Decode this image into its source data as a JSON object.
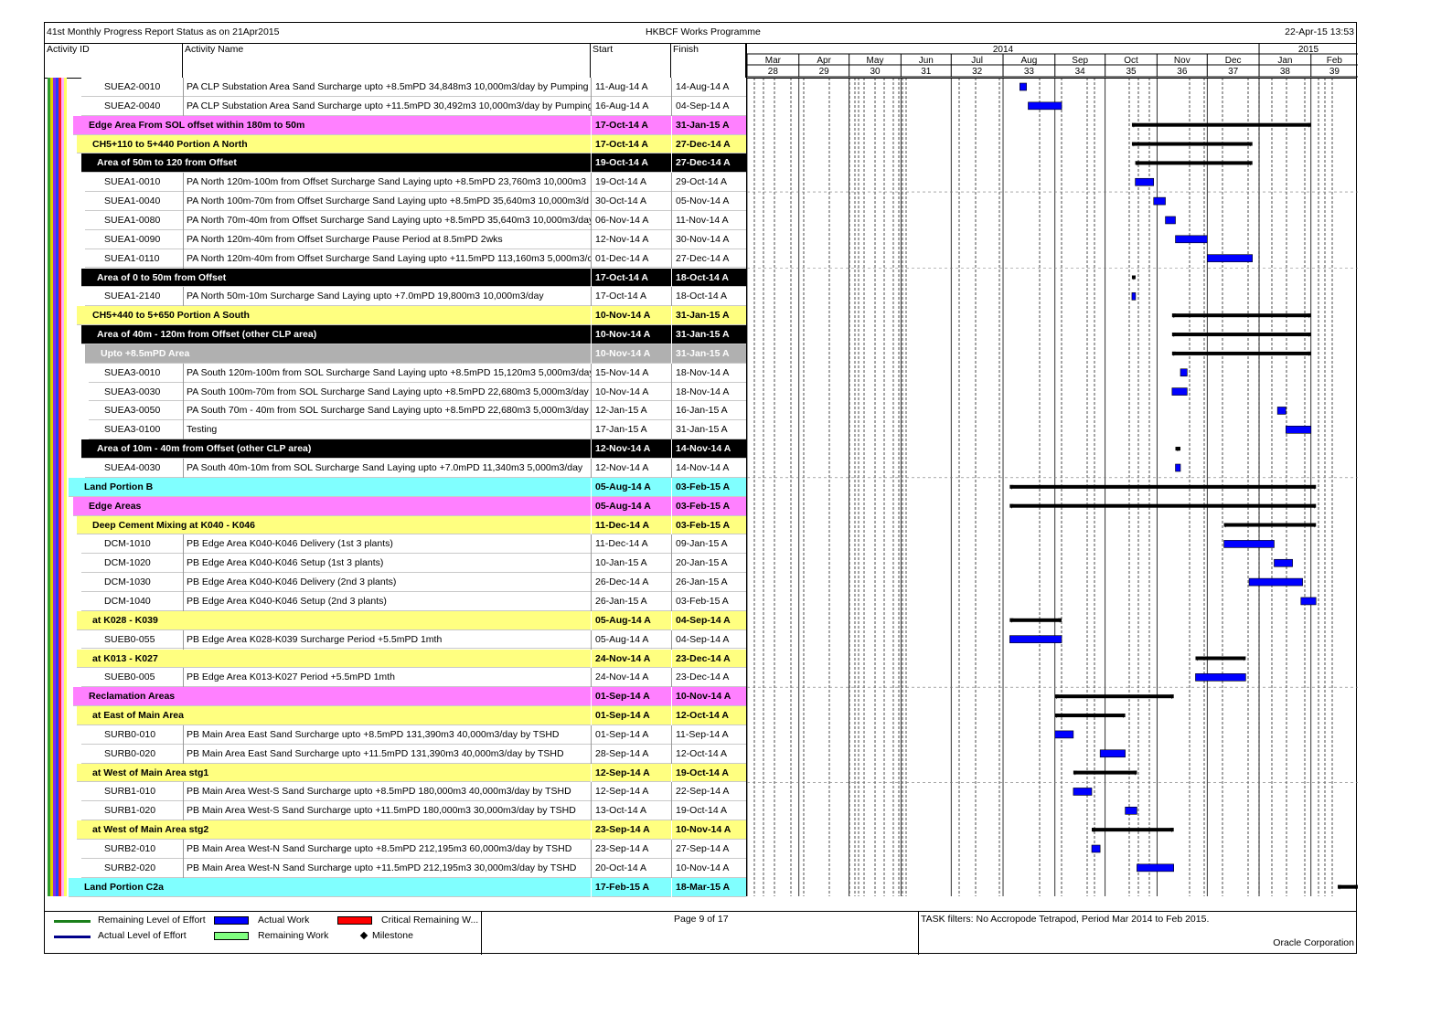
{
  "header": {
    "left": "41st Monthly Progress Report Status as on 21Apr2015",
    "center": "HKBCF Works Programme",
    "right": "22-Apr-15 13:53"
  },
  "columns": {
    "id": "Activity ID",
    "name": "Activity Name",
    "start": "Start",
    "finish": "Finish"
  },
  "timeline": {
    "years": [
      "2014",
      "2015"
    ],
    "months": [
      "Mar",
      "Apr",
      "May",
      "Jun",
      "Jul",
      "Aug",
      "Sep",
      "Oct",
      "Nov",
      "Dec",
      "Jan",
      "Feb"
    ],
    "periods": [
      "28",
      "29",
      "30",
      "31",
      "32",
      "33",
      "34",
      "35",
      "36",
      "37",
      "38",
      "39"
    ]
  },
  "colors": {
    "magenta_band": "#ff80ff",
    "yellow_band": "#ffff80",
    "black_band": "#000000",
    "grey_band": "#b0b0b0",
    "cyan_band": "#80ffff",
    "actual_work": "#0000ff",
    "summary_bar": "#000000"
  },
  "rows": [
    {
      "id": "SUEA2-0010",
      "name": "PA CLP Substation Area Sand Surcharge upto +8.5mPD 34,848m3 10,000m3/day by Pumping I",
      "start": "11-Aug-14 A",
      "finish": "14-Aug-14 A",
      "kind": "task",
      "indent": 2
    },
    {
      "id": "SUEA2-0040",
      "name": "PA CLP Substation Area Sand Surcharge upto +11.5mPD 30,492m3 10,000m3/day by Pumping",
      "start": "16-Aug-14 A",
      "finish": "04-Sep-14 A",
      "kind": "task",
      "indent": 2
    },
    {
      "id": "",
      "name": "Edge Area From SOL offset within 180m to 50m",
      "start": "17-Oct-14 A",
      "finish": "31-Jan-15 A",
      "kind": "magenta",
      "indent": 0
    },
    {
      "id": "",
      "name": "CH5+110 to 5+440 Portion A North",
      "start": "17-Oct-14 A",
      "finish": "27-Dec-14 A",
      "kind": "yellow",
      "indent": 1
    },
    {
      "id": "",
      "name": "Area of 50m to 120 from Offset",
      "start": "19-Oct-14 A",
      "finish": "27-Dec-14 A",
      "kind": "black",
      "indent": 2
    },
    {
      "id": "SUEA1-0010",
      "name": "PA North 120m-100m from Offset Surcharge Sand Laying upto +8.5mPD 23,760m3 10,000m3",
      "start": "19-Oct-14 A",
      "finish": "29-Oct-14 A",
      "kind": "task",
      "indent": 3
    },
    {
      "id": "SUEA1-0040",
      "name": "PA North 100m-70m from Offset Surcharge Sand Laying upto +8.5mPD 35,640m3 10,000m3/d",
      "start": "30-Oct-14 A",
      "finish": "05-Nov-14 A",
      "kind": "task",
      "indent": 3
    },
    {
      "id": "SUEA1-0080",
      "name": "PA North 70m-40m from Offset Surcharge Sand Laying upto +8.5mPD 35,640m3 10,000m3/day",
      "start": "06-Nov-14 A",
      "finish": "11-Nov-14 A",
      "kind": "task",
      "indent": 3
    },
    {
      "id": "SUEA1-0090",
      "name": "PA North 120m-40m from Offset Surcharge Pause Period at 8.5mPD 2wks",
      "start": "12-Nov-14 A",
      "finish": "30-Nov-14 A",
      "kind": "task",
      "indent": 3
    },
    {
      "id": "SUEA1-0110",
      "name": "PA North 120m-40m from Offset Surcharge Sand Laying upto +11.5mPD 113,160m3 5,000m3/c",
      "start": "01-Dec-14 A",
      "finish": "27-Dec-14 A",
      "kind": "task",
      "indent": 3
    },
    {
      "id": "",
      "name": "Area of 0 to 50m from Offset",
      "start": "17-Oct-14 A",
      "finish": "18-Oct-14 A",
      "kind": "black",
      "indent": 2
    },
    {
      "id": "SUEA1-2140",
      "name": "PA North 50m-10m Surcharge Sand Laying upto +7.0mPD 19,800m3 10,000m3/day",
      "start": "17-Oct-14 A",
      "finish": "18-Oct-14 A",
      "kind": "task",
      "indent": 3
    },
    {
      "id": "",
      "name": "CH5+440 to 5+650 Portion A South",
      "start": "10-Nov-14 A",
      "finish": "31-Jan-15 A",
      "kind": "yellow",
      "indent": 1
    },
    {
      "id": "",
      "name": "Area of 40m - 120m from Offset (other CLP area)",
      "start": "10-Nov-14 A",
      "finish": "31-Jan-15 A",
      "kind": "black",
      "indent": 2
    },
    {
      "id": "",
      "name": "Upto +8.5mPD Area",
      "start": "10-Nov-14 A",
      "finish": "31-Jan-15 A",
      "kind": "grey",
      "indent": 3
    },
    {
      "id": "SUEA3-0010",
      "name": "PA South 120m-100m from SOL Surcharge Sand Laying upto +8.5mPD 15,120m3 5,000m3/day",
      "start": "15-Nov-14 A",
      "finish": "18-Nov-14 A",
      "kind": "task",
      "indent": 4
    },
    {
      "id": "SUEA3-0030",
      "name": "PA South 100m-70m from SOL Surcharge Sand Laying upto +8.5mPD 22,680m3 5,000m3/day",
      "start": "10-Nov-14 A",
      "finish": "18-Nov-14 A",
      "kind": "task",
      "indent": 4
    },
    {
      "id": "SUEA3-0050",
      "name": "PA South 70m - 40m from SOL Surcharge Sand Laying upto +8.5mPD 22,680m3 5,000m3/day",
      "start": "12-Jan-15 A",
      "finish": "16-Jan-15 A",
      "kind": "task",
      "indent": 4
    },
    {
      "id": "SUEA3-0100",
      "name": "Testing",
      "start": "17-Jan-15 A",
      "finish": "31-Jan-15 A",
      "kind": "task",
      "indent": 4
    },
    {
      "id": "",
      "name": "Area of 10m - 40m from Offset (other CLP area)",
      "start": "12-Nov-14 A",
      "finish": "14-Nov-14 A",
      "kind": "black",
      "indent": 2
    },
    {
      "id": "SUEA4-0030",
      "name": "PA South 40m-10m from SOL Surcharge Sand Laying upto +7.0mPD 11,340m3 5,000m3/day",
      "start": "12-Nov-14 A",
      "finish": "14-Nov-14 A",
      "kind": "task",
      "indent": 3
    },
    {
      "id": "",
      "name": "Land Portion B",
      "start": "05-Aug-14 A",
      "finish": "03-Feb-15 A",
      "kind": "cyan",
      "indent": -1
    },
    {
      "id": "",
      "name": "Edge Areas",
      "start": "05-Aug-14 A",
      "finish": "03-Feb-15 A",
      "kind": "magenta",
      "indent": 0
    },
    {
      "id": "",
      "name": "Deep Cement Mixing at K040 - K046",
      "start": "11-Dec-14 A",
      "finish": "03-Feb-15 A",
      "kind": "yellow",
      "indent": 1
    },
    {
      "id": "DCM-1010",
      "name": "PB Edge Area K040-K046 Delivery (1st 3 plants)",
      "start": "11-Dec-14 A",
      "finish": "09-Jan-15 A",
      "kind": "task",
      "indent": 2
    },
    {
      "id": "DCM-1020",
      "name": "PB Edge Area K040-K046 Setup (1st 3 plants)",
      "start": "10-Jan-15 A",
      "finish": "20-Jan-15 A",
      "kind": "task",
      "indent": 2
    },
    {
      "id": "DCM-1030",
      "name": "PB Edge Area K040-K046 Delivery (2nd 3 plants)",
      "start": "26-Dec-14 A",
      "finish": "26-Jan-15 A",
      "kind": "task",
      "indent": 2
    },
    {
      "id": "DCM-1040",
      "name": "PB Edge Area K040-K046 Setup (2nd 3 plants)",
      "start": "26-Jan-15 A",
      "finish": "03-Feb-15 A",
      "kind": "task",
      "indent": 2
    },
    {
      "id": "",
      "name": "at K028 - K039",
      "start": "05-Aug-14 A",
      "finish": "04-Sep-14 A",
      "kind": "yellow",
      "indent": 1
    },
    {
      "id": "SUEB0-055",
      "name": "PB Edge Area K028-K039 Surcharge Period +5.5mPD 1mth",
      "start": "05-Aug-14 A",
      "finish": "04-Sep-14 A",
      "kind": "task",
      "indent": 2
    },
    {
      "id": "",
      "name": "at K013 - K027",
      "start": "24-Nov-14 A",
      "finish": "23-Dec-14 A",
      "kind": "yellow",
      "indent": 1
    },
    {
      "id": "SUEB0-005",
      "name": "PB Edge Area K013-K027 Period +5.5mPD 1mth",
      "start": "24-Nov-14 A",
      "finish": "23-Dec-14 A",
      "kind": "task",
      "indent": 2
    },
    {
      "id": "",
      "name": "Reclamation Areas",
      "start": "01-Sep-14 A",
      "finish": "10-Nov-14 A",
      "kind": "magenta",
      "indent": 0
    },
    {
      "id": "",
      "name": "at East of Main Area",
      "start": "01-Sep-14 A",
      "finish": "12-Oct-14 A",
      "kind": "yellow",
      "indent": 1
    },
    {
      "id": "SURB0-010",
      "name": "PB Main Area East Sand Surcharge upto +8.5mPD 131,390m3 40,000m3/day by TSHD",
      "start": "01-Sep-14 A",
      "finish": "11-Sep-14 A",
      "kind": "task",
      "indent": 2
    },
    {
      "id": "SURB0-020",
      "name": "PB Main Area East Sand Surcharge upto +11.5mPD 131,390m3 40,000m3/day by TSHD",
      "start": "28-Sep-14 A",
      "finish": "12-Oct-14 A",
      "kind": "task",
      "indent": 2
    },
    {
      "id": "",
      "name": "at West of Main Area stg1",
      "start": "12-Sep-14 A",
      "finish": "19-Oct-14 A",
      "kind": "yellow",
      "indent": 1
    },
    {
      "id": "SURB1-010",
      "name": "PB Main Area West-S Sand Surcharge upto +8.5mPD 180,000m3 40,000m3/day by TSHD",
      "start": "12-Sep-14 A",
      "finish": "22-Sep-14 A",
      "kind": "task",
      "indent": 2
    },
    {
      "id": "SURB1-020",
      "name": "PB Main Area West-S Sand Surcharge upto +11.5mPD 180,000m3 30,000m3/day by TSHD",
      "start": "13-Oct-14 A",
      "finish": "19-Oct-14 A",
      "kind": "task",
      "indent": 2
    },
    {
      "id": "",
      "name": "at West of Main Area stg2",
      "start": "23-Sep-14 A",
      "finish": "10-Nov-14 A",
      "kind": "yellow",
      "indent": 1
    },
    {
      "id": "SURB2-010",
      "name": "PB Main Area West-N Sand Surcharge upto +8.5mPD 212,195m3 60,000m3/day by TSHD",
      "start": "23-Sep-14 A",
      "finish": "27-Sep-14 A",
      "kind": "task",
      "indent": 2
    },
    {
      "id": "SURB2-020",
      "name": "PB Main Area West-N Sand Surcharge upto +11.5mPD 212,195m3 30,000m3/day by TSHD",
      "start": "20-Oct-14 A",
      "finish": "10-Nov-14 A",
      "kind": "task",
      "indent": 2
    },
    {
      "id": "",
      "name": "Land Portion C2a",
      "start": "17-Feb-15 A",
      "finish": "18-Mar-15 A",
      "kind": "cyan",
      "indent": -1
    }
  ],
  "footer": {
    "legend": [
      {
        "label": "Remaining Level of Effort",
        "swatch": "line",
        "color": "#1a7f1a"
      },
      {
        "label": "Actual Work",
        "swatch": "box",
        "color": "#0000ff"
      },
      {
        "label": "Critical Remaining W...",
        "swatch": "box",
        "color": "#ff0000"
      },
      {
        "label": "Actual Level of Effort",
        "swatch": "line",
        "color": "#00008b"
      },
      {
        "label": "Remaining Work",
        "swatch": "box",
        "color": "#80ff80"
      },
      {
        "label": "Milestone",
        "swatch": "diamond",
        "color": "#000000"
      }
    ],
    "page": "Page 9 of 17",
    "filters": "TASK filters: No Accropode Tetrapod, Period Mar 2014 to Feb 2015.",
    "company": "Oracle Corporation"
  }
}
